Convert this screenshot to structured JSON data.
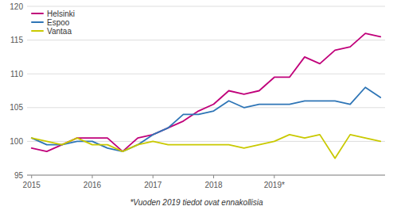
{
  "chart_data": {
    "type": "line",
    "categories": [
      "2015",
      null,
      null,
      null,
      "2016",
      null,
      null,
      null,
      "2017",
      null,
      null,
      null,
      "2018",
      null,
      null,
      null,
      "2019*",
      null,
      null,
      null,
      null,
      null,
      null,
      null
    ],
    "series": [
      {
        "name": "Helsinki",
        "color": "#c0007a",
        "values": [
          99.0,
          98.5,
          99.5,
          100.5,
          100.5,
          100.5,
          98.5,
          100.5,
          101.0,
          102.0,
          103.0,
          104.5,
          105.5,
          107.5,
          107.0,
          107.5,
          109.5,
          109.5,
          112.5,
          111.5,
          113.5,
          114.0,
          116.0,
          115.5
        ]
      },
      {
        "name": "Espoo",
        "color": "#2e75b6",
        "values": [
          100.5,
          99.5,
          99.5,
          100.0,
          100.0,
          99.0,
          98.5,
          99.5,
          101.0,
          102.0,
          104.0,
          104.0,
          104.5,
          106.0,
          105.0,
          105.5,
          105.5,
          105.5,
          106.0,
          106.0,
          106.0,
          105.5,
          108.0,
          106.5
        ]
      },
      {
        "name": "Vantaa",
        "color": "#c9c900",
        "values": [
          100.5,
          100.0,
          99.5,
          100.5,
          99.5,
          99.5,
          98.5,
          99.5,
          100.0,
          99.5,
          99.5,
          99.5,
          99.5,
          99.5,
          99.0,
          99.5,
          100.0,
          101.0,
          100.5,
          101.0,
          97.5,
          101.0,
          100.5,
          100.0
        ]
      }
    ],
    "ylim": [
      95,
      120
    ],
    "yticks": [
      95,
      100,
      105,
      110,
      115,
      120
    ],
    "grid": true,
    "legend": "upper left",
    "annotations": [
      "*Vuoden 2019 tiedot ovat ennakollisia"
    ]
  }
}
